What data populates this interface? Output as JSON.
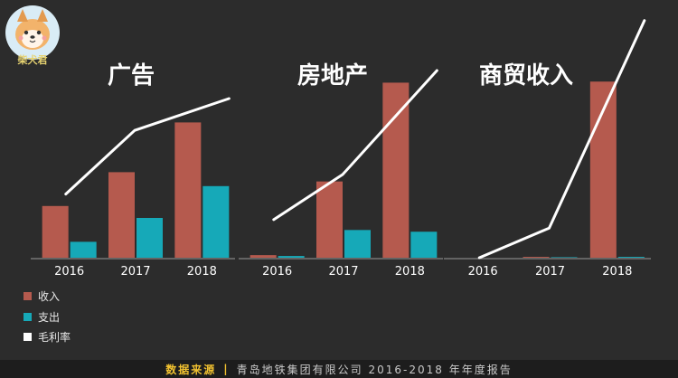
{
  "colors": {
    "background": "#2c2c2c",
    "revenue": "#b55a4e",
    "expense": "#16a9b8",
    "margin": "#ffffff",
    "accent": "#f2c230"
  },
  "logo": {
    "icon": "shiba-dog-logo-icon",
    "text": "柴犬君"
  },
  "legend": [
    {
      "key": "revenue",
      "label": "收入"
    },
    {
      "key": "expense",
      "label": "支出"
    },
    {
      "key": "margin",
      "label": "毛利率"
    }
  ],
  "footer": {
    "source_label": "数据来源",
    "source_text": "青岛地铁集团有限公司 2016-2018 年年度报告"
  },
  "chart_data": [
    {
      "type": "bar",
      "title": "广告",
      "categories": [
        "2016",
        "2017",
        "2018"
      ],
      "series": [
        {
          "name": "收入",
          "values": [
            26,
            43,
            68
          ]
        },
        {
          "name": "支出",
          "values": [
            8,
            20,
            36
          ]
        },
        {
          "name": "毛利率",
          "type": "line",
          "values": [
            32,
            64,
            80
          ]
        }
      ],
      "ylim": [
        0,
        100
      ],
      "legend": "bottom-left"
    },
    {
      "type": "bar",
      "title": "房地产",
      "categories": [
        "2016",
        "2017",
        "2018"
      ],
      "series": [
        {
          "name": "收入",
          "values": [
            1.5,
            44,
            101
          ]
        },
        {
          "name": "支出",
          "values": [
            1,
            16,
            15
          ]
        },
        {
          "name": "毛利率",
          "type": "line",
          "values": [
            22,
            48,
            108
          ]
        }
      ],
      "ylim": [
        0,
        120
      ],
      "legend": "bottom-left"
    },
    {
      "type": "bar",
      "title": "商贸收入",
      "categories": [
        "2016",
        "2017",
        "2018"
      ],
      "series": [
        {
          "name": "收入",
          "values": [
            0,
            0.5,
            101
          ]
        },
        {
          "name": "支出",
          "values": [
            0,
            0.3,
            0.5
          ]
        },
        {
          "name": "毛利率",
          "type": "line",
          "values": [
            0,
            17,
            136
          ]
        }
      ],
      "ylim": [
        0,
        140
      ],
      "legend": "bottom-left"
    }
  ]
}
